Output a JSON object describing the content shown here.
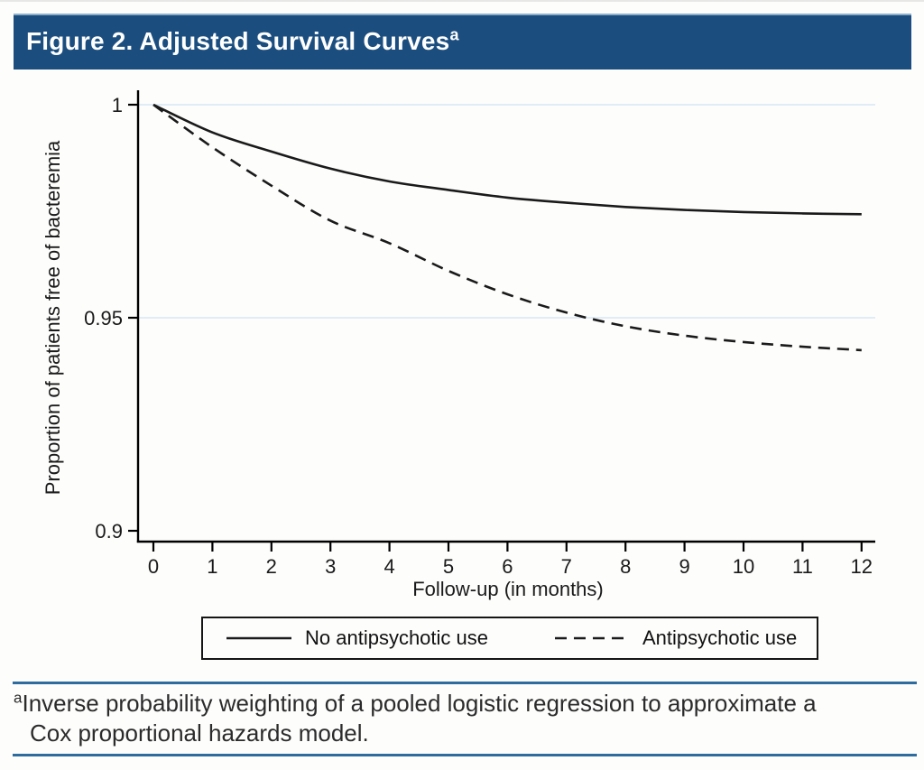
{
  "header": {
    "title": "Figure 2. Adjusted Survival Curves",
    "superscript": "a"
  },
  "chart_data": {
    "type": "line",
    "x": [
      0,
      1,
      2,
      3,
      4,
      5,
      6,
      7,
      8,
      9,
      10,
      11,
      12
    ],
    "series": [
      {
        "name": "No antipsychotic use",
        "line_style": "solid",
        "values": [
          1.0,
          0.9935,
          0.989,
          0.985,
          0.982,
          0.98,
          0.9782,
          0.977,
          0.976,
          0.9753,
          0.9748,
          0.9745,
          0.9743
        ]
      },
      {
        "name": "Antipsychotic use",
        "line_style": "dashed",
        "values": [
          1.0,
          0.99,
          0.981,
          0.9728,
          0.9675,
          0.961,
          0.9555,
          0.9512,
          0.948,
          0.9458,
          0.9443,
          0.9432,
          0.9424
        ]
      }
    ],
    "xlabel": "Follow-up (in months)",
    "ylabel": "Proportion of patients free of bacteremia",
    "xlim": [
      0,
      12
    ],
    "ylim": [
      0.9,
      1.0
    ],
    "x_ticks": [
      0,
      1,
      2,
      3,
      4,
      5,
      6,
      7,
      8,
      9,
      10,
      11,
      12
    ],
    "y_ticks": [
      {
        "label": "1",
        "value": 1
      },
      {
        "label": "0.95",
        "value": 0.95
      },
      {
        "label": "0.9",
        "value": 0.9
      }
    ],
    "gridlines_at": [
      1,
      0.95
    ],
    "grid": "horizontal-light-blue",
    "legend_position": "bottom"
  },
  "footnote": {
    "marker": "a",
    "line1": "Inverse probability weighting of a pooled logistic regression to approximate a",
    "line2": "Cox proportional hazards model."
  },
  "colors": {
    "header_bg": "#1b4e7f",
    "header_text": "#ffffff",
    "separator_line": "#2e6b9e",
    "gridline": "#dce9f6",
    "curve": "#1a1a1a"
  }
}
